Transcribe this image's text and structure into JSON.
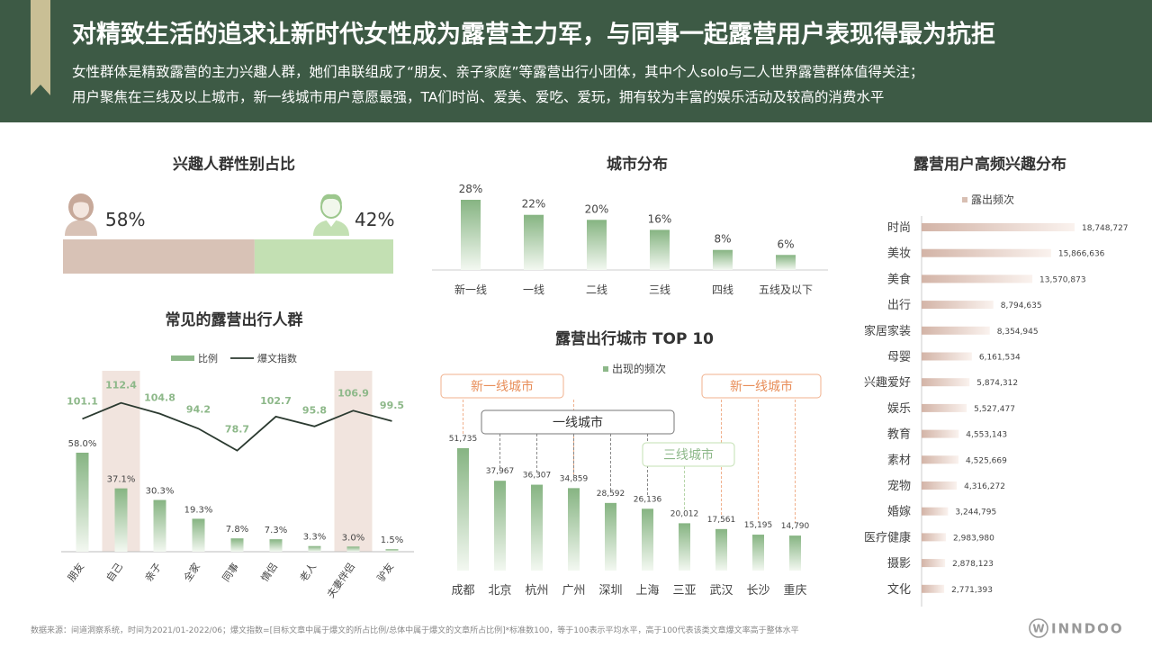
{
  "header": {
    "title": "对精致生活的追求让新时代女性成为露营主力军，与同事一起露营用户表现得最为抗拒",
    "subtitle_line1": "女性群体是精致露营的主力兴趣人群，她们串联组成了“朋友、亲子家庭”等露营出行小团体，其中个人solo与二人世界露营群体值得关注；",
    "subtitle_line2": "用户聚焦在三线及以上城市，新一线城市用户意愿最强，TA们时尚、爱美、爱吃、爱玩，拥有较为丰富的娱乐活动及较高的消费水平"
  },
  "footer": {
    "source": "数据来源：间道洞察系统，时间为2021/01-2022/06；爆文指数=[目标文章中属于爆文的所占比例/总体中属于爆文的文章所占比例]*标准数100，等于100表示平均水平，高于100代表该类文章爆文率高于整体水平",
    "brand": "INNDOO"
  },
  "gender": {
    "title": "兴趣人群性别占比",
    "female_pct": "58%",
    "male_pct": "42%",
    "female_share": 0.58,
    "colors": {
      "female": "#d8c2b6",
      "male": "#c3e0b3"
    },
    "icons": {
      "female": "female-avatar-icon",
      "male": "male-avatar-icon"
    }
  },
  "charts": {
    "groups": {
      "title": "常见的露营出行人群",
      "legend_bar": "比例",
      "legend_line": "爆文指数",
      "categories": [
        "朋友",
        "自己",
        "亲子",
        "全家",
        "同事",
        "情侣",
        "老人",
        "夫妻伴侣",
        "驴友"
      ],
      "ratio": [
        58.0,
        37.1,
        30.3,
        19.3,
        7.8,
        7.3,
        3.3,
        3.0,
        1.5
      ],
      "ratio_labels": [
        "58.0%",
        "37.1%",
        "30.3%",
        "19.3%",
        "7.8%",
        "7.3%",
        "3.3%",
        "3.0%",
        "1.5%"
      ],
      "index": [
        101.1,
        112.4,
        104.8,
        94.2,
        78.7,
        102.7,
        95.8,
        106.9,
        99.5
      ],
      "index_labels": [
        "101.1",
        "112.4",
        "104.8",
        "94.2",
        "78.7",
        "102.7",
        "95.8",
        "106.9",
        "99.5"
      ],
      "highlight": [
        "自己",
        "夫妻伴侣"
      ]
    },
    "city_tier": {
      "title": "城市分布",
      "categories": [
        "新一线",
        "一线",
        "二线",
        "三线",
        "四线",
        "五线及以下"
      ],
      "values": [
        28,
        22,
        20,
        16,
        8,
        6
      ],
      "labels": [
        "28%",
        "22%",
        "20%",
        "16%",
        "8%",
        "6%"
      ]
    },
    "top10": {
      "title": "露营出行城市 TOP 10",
      "legend": "出现的频次",
      "categories": [
        "成都",
        "北京",
        "杭州",
        "广州",
        "深圳",
        "上海",
        "三亚",
        "武汉",
        "长沙",
        "重庆"
      ],
      "values": [
        51735,
        37967,
        36307,
        34859,
        28592,
        26136,
        20012,
        17561,
        15195,
        14790
      ],
      "labels": [
        "51,735",
        "37,967",
        "36,307",
        "34,859",
        "28,592",
        "26,136",
        "20,012",
        "17,561",
        "15,195",
        "14,790"
      ],
      "callouts": {
        "new_tier1": "新一线城市",
        "tier1": "一线城市",
        "tier3": "三线城市"
      }
    },
    "interests": {
      "title": "露营用户高频兴趣分布",
      "legend": "露出频次",
      "categories": [
        "时尚",
        "美妆",
        "美食",
        "出行",
        "家居家装",
        "母婴",
        "兴趣爱好",
        "娱乐",
        "教育",
        "素材",
        "宠物",
        "婚嫁",
        "医疗健康",
        "摄影",
        "文化"
      ],
      "values": [
        18748727,
        15866636,
        13570873,
        8794635,
        8354945,
        6161534,
        5874312,
        5527477,
        4553143,
        4525669,
        4316272,
        3244795,
        2983980,
        2878123,
        2771393
      ],
      "labels": [
        "18,748,727",
        "15,866,636",
        "13,570,873",
        "8,794,635",
        "8,354,945",
        "6,161,534",
        "5,874,312",
        "5,527,477",
        "4,553,143",
        "4,525,669",
        "4,316,272",
        "3,244,795",
        "2,983,980",
        "2,878,123",
        "2,771,393"
      ]
    }
  },
  "colors": {
    "header_bg": "#3d5a45",
    "accent_tab": "#c9bf95",
    "green_bar": "#8db889",
    "pink_bar": "#d8bfb3",
    "highlight_band": "#f1e4de",
    "callout_orange": "#f0b08c"
  }
}
